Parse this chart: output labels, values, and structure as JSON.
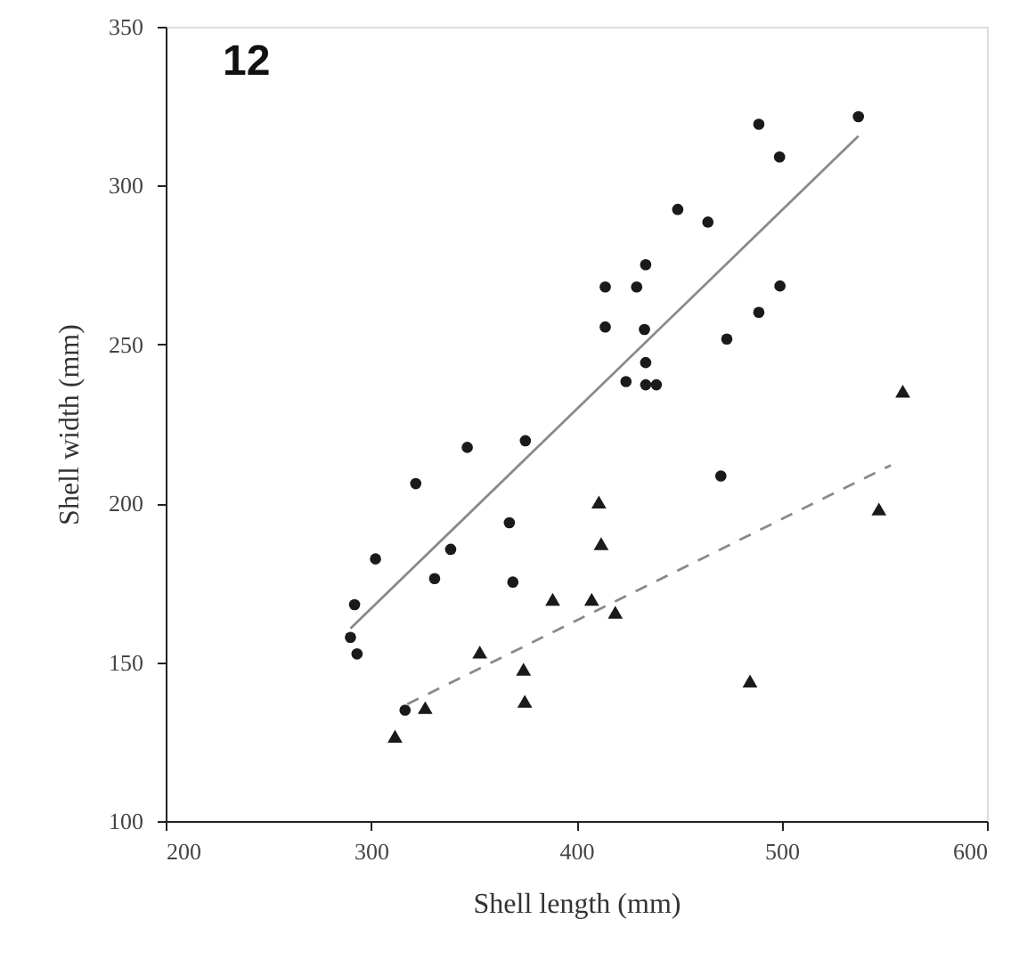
{
  "chart_data": {
    "type": "scatter",
    "title": "12",
    "xlabel": "Shell length (mm)",
    "ylabel": "Shell width (mm)",
    "xlim": [
      200,
      600
    ],
    "xticks": [
      200,
      300,
      400,
      500,
      600
    ],
    "ylim": [
      100,
      350
    ],
    "yticks": [
      100,
      150,
      200,
      250,
      300,
      350
    ],
    "grid": false,
    "series": [
      {
        "type": "scatter",
        "marker": "circle",
        "color": "#1a1a1a",
        "x": [
          488.9,
          537.4,
          499,
          449.4,
          464.1,
          433.8,
          414.1,
          429.4,
          499.2,
          488.9,
          414.1,
          433.2,
          473.3,
          433.8,
          424.2,
          433.8,
          439,
          346.9,
          375.2,
          321.8,
          470.4,
          367.4,
          302.2,
          338.8,
          331,
          369.1,
          292,
          290,
          293.2,
          316.6
        ],
        "values": [
          319.3,
          321.7,
          309,
          292.5,
          288.5,
          275.1,
          268.1,
          268.1,
          268.4,
          260.1,
          255.5,
          254.7,
          251.7,
          244.3,
          238.3,
          237.3,
          237.3,
          217.6,
          219.7,
          206.2,
          208.6,
          193.9,
          182.5,
          185.5,
          176.3,
          175.2,
          168.1,
          157.8,
          152.6,
          134.9
        ]
      },
      {
        "type": "scatter",
        "marker": "triangle",
        "color": "#1a1a1a",
        "x": [
          311.7,
          326.4,
          353,
          374.9,
          374.3,
          388.5,
          407.5,
          419,
          411,
          412.1,
          484.6,
          547.4,
          559
        ],
        "values": [
          126.7,
          135.7,
          153.2,
          137.7,
          147.8,
          169.8,
          169.8,
          165.7,
          200.4,
          187.3,
          144.1,
          198.2,
          235.3
        ]
      },
      {
        "type": "line",
        "line_style": "solid",
        "color": "#8a8a8a",
        "x": [
          290,
          537.4
        ],
        "values": [
          160.6,
          315.6
        ]
      },
      {
        "type": "line",
        "line_style": "dashed",
        "color": "#8a8a8a",
        "x": [
          317.7,
          553.2
        ],
        "values": [
          136.8,
          212
        ]
      }
    ]
  }
}
